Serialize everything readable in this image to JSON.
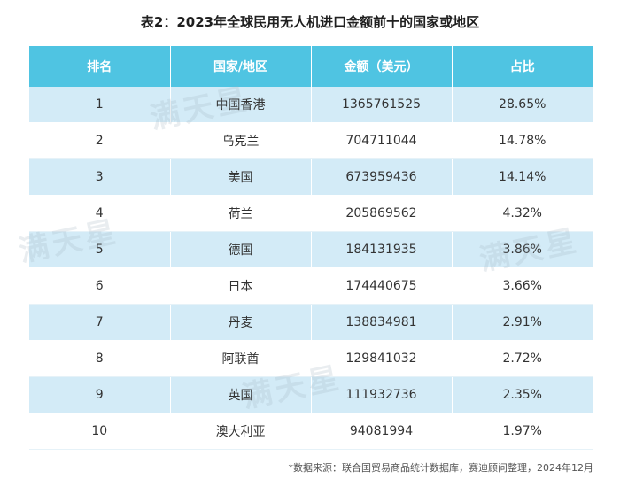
{
  "title": "表2：2023年全球民用无人机进口金额前十的国家或地区",
  "columns": [
    "排名",
    "国家/地区",
    "金额（美元）",
    "占比"
  ],
  "rows": [
    {
      "rank": "1",
      "region": "中国香港",
      "amount": "1365761525",
      "share": "28.65%"
    },
    {
      "rank": "2",
      "region": "乌克兰",
      "amount": "704711044",
      "share": "14.78%"
    },
    {
      "rank": "3",
      "region": "美国",
      "amount": "673959436",
      "share": "14.14%"
    },
    {
      "rank": "4",
      "region": "荷兰",
      "amount": "205869562",
      "share": "4.32%"
    },
    {
      "rank": "5",
      "region": "德国",
      "amount": "184131935",
      "share": "3.86%"
    },
    {
      "rank": "6",
      "region": "日本",
      "amount": "174440675",
      "share": "3.66%"
    },
    {
      "rank": "7",
      "region": "丹麦",
      "amount": "138834981",
      "share": "2.91%"
    },
    {
      "rank": "8",
      "region": "阿联酋",
      "amount": "129841032",
      "share": "2.72%"
    },
    {
      "rank": "9",
      "region": "英国",
      "amount": "111932736",
      "share": "2.35%"
    },
    {
      "rank": "10",
      "region": "澳大利亚",
      "amount": "94081994",
      "share": "1.97%"
    }
  ],
  "footer": "*数据来源：联合国贸易商品统计数据库，赛迪顾问整理，2024年12月",
  "watermark": "满天星"
}
